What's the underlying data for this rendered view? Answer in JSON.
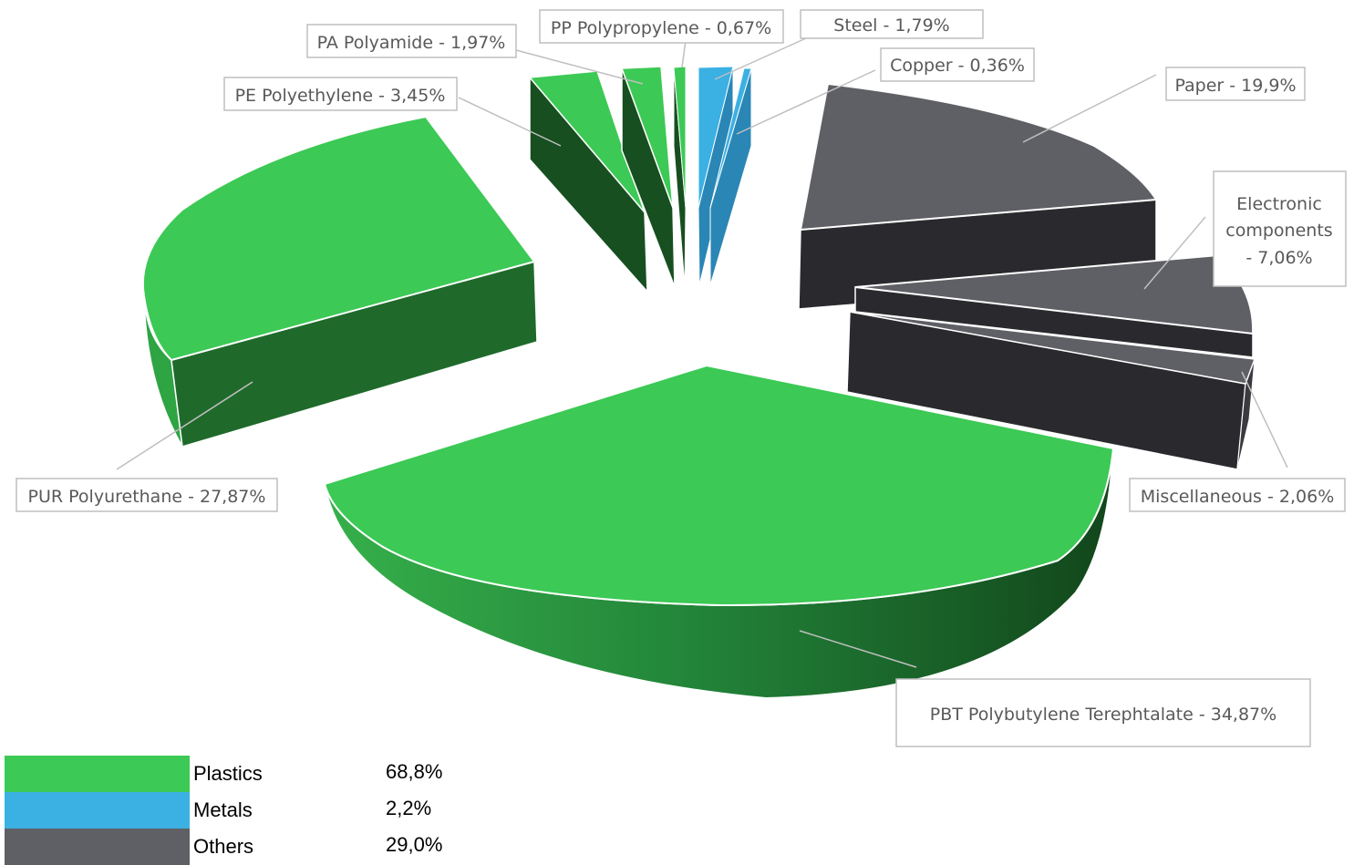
{
  "chart_data": {
    "type": "pie",
    "style": "3d-exploded",
    "slices": [
      {
        "label": "PBT Polybutylene Terephtalate - 34,87%",
        "name": "PBT Polybutylene Terephtalate",
        "value": 34.87,
        "group": "Plastics"
      },
      {
        "label": "PUR Polyurethane - 27,87%",
        "name": "PUR Polyurethane",
        "value": 27.87,
        "group": "Plastics"
      },
      {
        "label": "PE Polyethylene - 3,45%",
        "name": "PE Polyethylene",
        "value": 3.45,
        "group": "Plastics"
      },
      {
        "label": "PA Polyamide - 1,97%",
        "name": "PA Polyamide",
        "value": 1.97,
        "group": "Plastics"
      },
      {
        "label": "PP Polypropylene - 0,67%",
        "name": "PP Polypropylene",
        "value": 0.67,
        "group": "Plastics"
      },
      {
        "label": "Steel - 1,79%",
        "name": "Steel",
        "value": 1.79,
        "group": "Metals"
      },
      {
        "label": "Copper - 0,36%",
        "name": "Copper",
        "value": 0.36,
        "group": "Metals"
      },
      {
        "label": "Paper - 19,9%",
        "name": "Paper",
        "value": 19.9,
        "group": "Others"
      },
      {
        "label_lines": [
          "Electronic",
          "components",
          "- 7,06%"
        ],
        "name": "Electronic components",
        "value": 7.06,
        "group": "Others"
      },
      {
        "label": "Miscellaneous - 2,06%",
        "name": "Miscellaneous",
        "value": 2.06,
        "group": "Others"
      }
    ],
    "legend": {
      "placement": "bottom-left",
      "items": [
        {
          "name": "Plastics",
          "value_label": "68,8%",
          "value": 68.8,
          "color": "#3cc955"
        },
        {
          "name": "Metals",
          "value_label": "2,2%",
          "value": 2.2,
          "color": "#3bb0e3"
        },
        {
          "name": "Others",
          "value_label": "29,0%",
          "value": 29.0,
          "color": "#5f6065"
        }
      ]
    },
    "colors": {
      "plastics_top": "#3cc955",
      "plastics_side": "#1f6a2b",
      "plastics_side_dark": "#154d1f",
      "metals_top": "#3bb0e3",
      "metals_side": "#2a86b5",
      "others_top": "#5f6065",
      "others_side": "#2a2a2e",
      "callout_border": "#bfbfbf",
      "leader_line": "#bfbfbf"
    }
  }
}
